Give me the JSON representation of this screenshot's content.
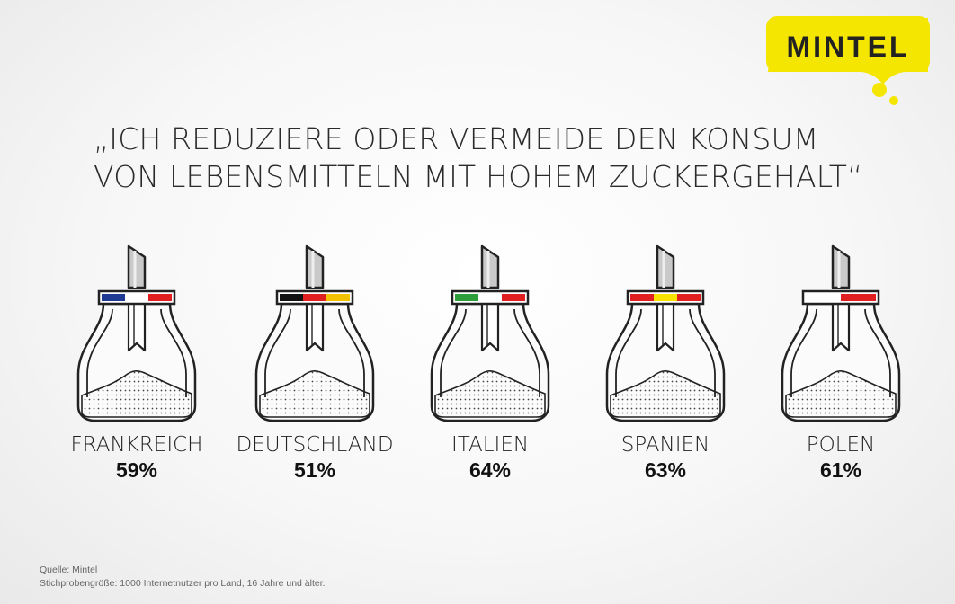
{
  "logo": {
    "text": "MINTEL",
    "color": "#f4e600"
  },
  "headline": {
    "line1": "„ICH REDUZIERE ODER VERMEIDE DEN KONSUM",
    "line2": "VON LEBENSMITTELN MIT HOHEM ZUCKERGEHALT“"
  },
  "chart_data": {
    "type": "bar",
    "categories": [
      "FRANKREICH",
      "DEUTSCHLAND",
      "ITALIEN",
      "SPANIEN",
      "POLEN"
    ],
    "values": [
      59,
      51,
      64,
      63,
      61
    ],
    "labels": [
      "59%",
      "51%",
      "64%",
      "63%",
      "61%"
    ]
  },
  "items": [
    {
      "country": "FRANKREICH",
      "percent": "59%",
      "icon": "sugar-dispenser-icon",
      "flag": [
        "#1f3a93",
        "#ffffff",
        "#e02020"
      ]
    },
    {
      "country": "DEUTSCHLAND",
      "percent": "51%",
      "icon": "sugar-dispenser-icon",
      "flag": [
        "#111111",
        "#e02020",
        "#f2c200"
      ]
    },
    {
      "country": "ITALIEN",
      "percent": "64%",
      "icon": "sugar-dispenser-icon",
      "flag": [
        "#2e9e3a",
        "#ffffff",
        "#e02020"
      ]
    },
    {
      "country": "SPANIEN",
      "percent": "63%",
      "icon": "sugar-dispenser-icon",
      "flag": [
        "#e02020",
        "#f7e200",
        "#e02020"
      ]
    },
    {
      "country": "POLEN",
      "percent": "61%",
      "icon": "sugar-dispenser-icon",
      "flag": [
        "#ffffff",
        "#e02020"
      ]
    }
  ],
  "footer": {
    "source": "Quelle: Mintel",
    "sample": "Stichprobengröße: 1000 Internetnutzer pro Land, 16 Jahre und älter."
  }
}
